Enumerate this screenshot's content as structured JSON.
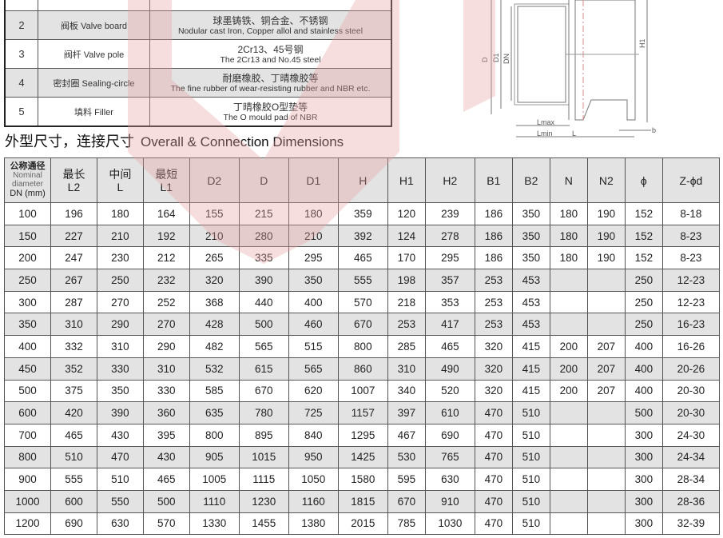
{
  "materials": [
    {
      "no": "",
      "part_cn": "",
      "part_en": "",
      "mat_cn": "",
      "mat_en": ""
    },
    {
      "no": "2",
      "part_cn": "阀板",
      "part_en": "Valve board",
      "mat_cn": "球墨铸铁、铜合金、不锈钢",
      "mat_en": "Nodular cast Iron, Copper allol and stainless steel"
    },
    {
      "no": "3",
      "part_cn": "阀杆",
      "part_en": "Valve pole",
      "mat_cn": "2Cr13、45号钢",
      "mat_en": "The 2Cr13 and No.45 steel"
    },
    {
      "no": "4",
      "part_cn": "密封圈",
      "part_en": "Sealing-circle",
      "mat_cn": "耐磨橡胶、丁晴橡胶等",
      "mat_en": "The fine rubber of wear-resisting rubber and NBR etc."
    },
    {
      "no": "5",
      "part_cn": "填料",
      "part_en": "Filler",
      "mat_cn": "丁晴橡胶O型垫等",
      "mat_en": "The O mould pad of NBR"
    }
  ],
  "section_title": {
    "cn": "外型尺寸，连接尺寸",
    "en": "Overall & Connection Dimensions"
  },
  "diagram": {
    "labels": [
      "D",
      "D1",
      "DN",
      "H1",
      "Lmax",
      "Lmin",
      "L",
      "b"
    ]
  },
  "watermark_color": "#e8a0a0",
  "dims": {
    "header_first": {
      "cn": "公称通径",
      "en1": "Nominal",
      "en2": "diameter",
      "unit": "DN (mm)"
    },
    "headers": [
      [
        "最长",
        "L2"
      ],
      [
        "中间",
        "L"
      ],
      [
        "最短",
        "L1"
      ],
      [
        "",
        "D2"
      ],
      [
        "",
        "D"
      ],
      [
        "",
        "D1"
      ],
      [
        "",
        "H"
      ],
      [
        "",
        "H1"
      ],
      [
        "",
        "H2"
      ],
      [
        "",
        "B1"
      ],
      [
        "",
        "B2"
      ],
      [
        "",
        "N"
      ],
      [
        "",
        "N2"
      ],
      [
        "",
        "ϕ"
      ],
      [
        "",
        "Z-ϕd"
      ]
    ],
    "rows": [
      [
        "100",
        "196",
        "180",
        "164",
        "155",
        "215",
        "180",
        "359",
        "120",
        "239",
        "186",
        "350",
        "180",
        "190",
        "152",
        "8-18"
      ],
      [
        "150",
        "227",
        "210",
        "192",
        "210",
        "280",
        "210",
        "392",
        "124",
        "278",
        "186",
        "350",
        "180",
        "190",
        "152",
        "8-23"
      ],
      [
        "200",
        "247",
        "230",
        "212",
        "265",
        "335",
        "295",
        "465",
        "170",
        "295",
        "186",
        "350",
        "180",
        "190",
        "152",
        "8-23"
      ],
      [
        "250",
        "267",
        "250",
        "232",
        "320",
        "390",
        "350",
        "555",
        "198",
        "357",
        "253",
        "453",
        "",
        "",
        "250",
        "12-23"
      ],
      [
        "300",
        "287",
        "270",
        "252",
        "368",
        "440",
        "400",
        "570",
        "218",
        "353",
        "253",
        "453",
        "",
        "",
        "250",
        "12-23"
      ],
      [
        "350",
        "310",
        "290",
        "270",
        "428",
        "500",
        "460",
        "670",
        "253",
        "417",
        "253",
        "453",
        "",
        "",
        "250",
        "16-23"
      ],
      [
        "400",
        "332",
        "310",
        "290",
        "482",
        "565",
        "515",
        "800",
        "285",
        "465",
        "320",
        "415",
        "200",
        "207",
        "400",
        "16-26"
      ],
      [
        "450",
        "352",
        "330",
        "310",
        "532",
        "615",
        "565",
        "860",
        "310",
        "490",
        "320",
        "415",
        "200",
        "207",
        "400",
        "20-26"
      ],
      [
        "500",
        "375",
        "350",
        "330",
        "585",
        "670",
        "620",
        "1007",
        "340",
        "520",
        "320",
        "415",
        "200",
        "207",
        "400",
        "20-30"
      ],
      [
        "600",
        "420",
        "390",
        "360",
        "635",
        "780",
        "725",
        "1157",
        "397",
        "610",
        "470",
        "510",
        "",
        "",
        "500",
        "20-30"
      ],
      [
        "700",
        "465",
        "430",
        "395",
        "800",
        "895",
        "840",
        "1295",
        "467",
        "690",
        "470",
        "510",
        "",
        "",
        "300",
        "24-30"
      ],
      [
        "800",
        "510",
        "470",
        "430",
        "905",
        "1015",
        "950",
        "1425",
        "530",
        "765",
        "470",
        "510",
        "",
        "",
        "300",
        "24-34"
      ],
      [
        "900",
        "555",
        "510",
        "465",
        "1005",
        "1115",
        "1050",
        "1580",
        "595",
        "630",
        "470",
        "510",
        "",
        "",
        "300",
        "28-34"
      ],
      [
        "1000",
        "600",
        "550",
        "500",
        "1110",
        "1230",
        "1160",
        "1815",
        "670",
        "910",
        "470",
        "510",
        "",
        "",
        "300",
        "28-36"
      ],
      [
        "1200",
        "690",
        "630",
        "570",
        "1330",
        "1455",
        "1380",
        "2015",
        "785",
        "1030",
        "470",
        "510",
        "",
        "",
        "300",
        "32-39"
      ]
    ]
  }
}
